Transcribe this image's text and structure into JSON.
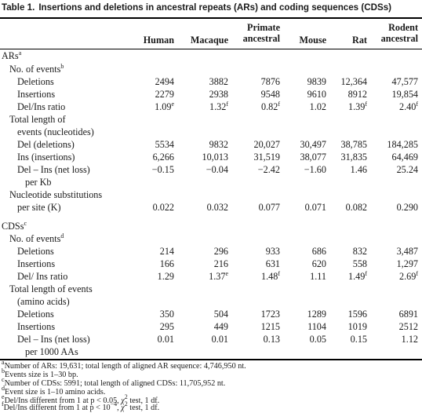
{
  "caption": {
    "number": "Table 1.",
    "title": "Insertions and deletions in ancestral repeats (ARs) and coding sequences (CDSs)"
  },
  "columns": [
    "Human",
    "Macaque",
    "Primate ancestral",
    "Mouse",
    "Rat",
    "Rodent ancestral"
  ],
  "sections": {
    "ars": {
      "label": "ARs",
      "sup": "a",
      "events_label": "No. of events",
      "events_sup": "b",
      "deletions": {
        "label": "Deletions",
        "values": [
          "2494",
          "3882",
          "7876",
          "9839",
          "12,364",
          "47,577"
        ]
      },
      "insertions": {
        "label": "Insertions",
        "values": [
          "2279",
          "2938",
          "9548",
          "9610",
          "8912",
          "19,854"
        ]
      },
      "ratio": {
        "label": "Del/Ins ratio",
        "values": [
          "1.09",
          "1.32",
          "0.82",
          "1.02",
          "1.39",
          "2.40"
        ],
        "sups": [
          "e",
          "f",
          "f",
          "",
          "f",
          "f"
        ]
      },
      "length_label_1": "Total length of",
      "length_label_2": "events (nucleotides)",
      "del": {
        "label": "Del (deletions)",
        "values": [
          "5534",
          "9832",
          "20,027",
          "30,497",
          "38,785",
          "184,285"
        ]
      },
      "ins": {
        "label": "Ins (insertions)",
        "values": [
          "6,266",
          "10,013",
          "31,519",
          "38,077",
          "31,835",
          "64,469"
        ]
      },
      "net": {
        "label_1": "Del – Ins (net loss)",
        "label_2": "per Kb",
        "values": [
          "−0.15",
          "−0.04",
          "−2.42",
          "−1.60",
          "1.46",
          "25.24"
        ]
      },
      "subs": {
        "label_1": "Nucleotide substitutions",
        "label_2": "per site (K)",
        "values": [
          "0.022",
          "0.032",
          "0.077",
          "0.071",
          "0.082",
          "0.290"
        ]
      }
    },
    "cdss": {
      "label": "CDSs",
      "sup": "c",
      "events_label": "No. of events",
      "events_sup": "d",
      "deletions": {
        "label": "Deletions",
        "values": [
          "214",
          "296",
          "933",
          "686",
          "832",
          "3,487"
        ]
      },
      "insertions": {
        "label": "Insertions",
        "values": [
          "166",
          "216",
          "631",
          "620",
          "558",
          "1,297"
        ]
      },
      "ratio": {
        "label": "Del/ Ins ratio",
        "values": [
          "1.29",
          "1.37",
          "1.48",
          "1.11",
          "1.49",
          "2.69"
        ],
        "sups": [
          "",
          "e",
          "f",
          "",
          "f",
          "f"
        ]
      },
      "length_label_1": "Total length of events",
      "length_label_2": "(amino acids)",
      "del": {
        "label": "Deletions",
        "values": [
          "350",
          "504",
          "1723",
          "1289",
          "1596",
          "6891"
        ]
      },
      "ins": {
        "label": "Insertions",
        "values": [
          "295",
          "449",
          "1215",
          "1104",
          "1019",
          "2512"
        ]
      },
      "net": {
        "label_1": "Del – Ins (net loss)",
        "label_2": "per 1000 AAs",
        "values": [
          "0.01",
          "0.01",
          "0.13",
          "0.05",
          "0.15",
          "1.12"
        ]
      }
    }
  },
  "footnotes": {
    "a": {
      "mark": "a",
      "text": "Number of ARs: 19,631; total length of aligned AR sequence: 4,746,950 nt."
    },
    "b": {
      "mark": "b",
      "text": "Events size is 1–30 bp."
    },
    "c": {
      "mark": "c",
      "text": "Number of CDSs: 5991; total length of aligned CDSs: 11,705,952 nt."
    },
    "d": {
      "mark": "d",
      "text": "Event size is 1–10 amino acids."
    },
    "e": {
      "mark": "e",
      "pre": "Del/Ins different from 1 at p < 0.05, ",
      "chi": "χ",
      "chi_sup": "2",
      "post": " test, 1 df."
    },
    "f": {
      "mark": "f",
      "pre": "Del/Ins different from 1 at p < 10",
      "exp": "−4",
      "mid": ", ",
      "chi": "χ",
      "chi_sup": "2",
      "post": " test, 1 df."
    }
  }
}
